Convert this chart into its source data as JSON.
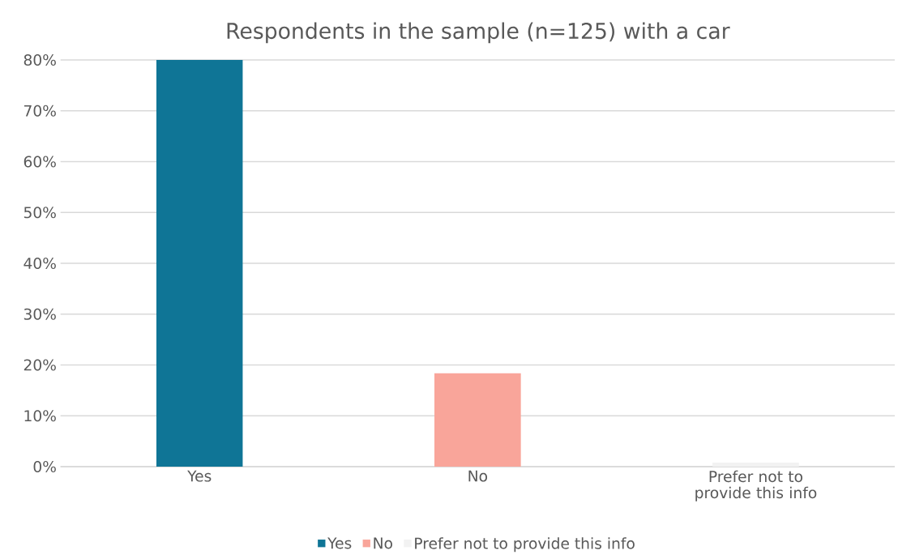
{
  "chart_data": {
    "type": "bar",
    "title": "Respondents in the sample (n=125)  with a car",
    "categories": [
      "Yes",
      "No",
      "Prefer not to provide this info"
    ],
    "series": [
      {
        "name": "Yes",
        "color": "#0f7596",
        "values": [
          80,
          null,
          null
        ]
      },
      {
        "name": "No",
        "color": "#f9a59a",
        "values": [
          null,
          18.4,
          null
        ]
      },
      {
        "name": "Prefer not to provide this info",
        "color": "#f2f2f2",
        "values": [
          null,
          null,
          0.8
        ]
      }
    ],
    "ylim": [
      0,
      80
    ],
    "yticks": [
      {
        "value": 0,
        "label": "0%"
      },
      {
        "value": 10,
        "label": "10%"
      },
      {
        "value": 20,
        "label": "20%"
      },
      {
        "value": 30,
        "label": "30%"
      },
      {
        "value": 40,
        "label": "40%"
      },
      {
        "value": 50,
        "label": "50%"
      },
      {
        "value": 60,
        "label": "60%"
      },
      {
        "value": 70,
        "label": "70%"
      },
      {
        "value": 80,
        "label": "80%"
      }
    ],
    "grid": "y",
    "legend": "bottom"
  }
}
